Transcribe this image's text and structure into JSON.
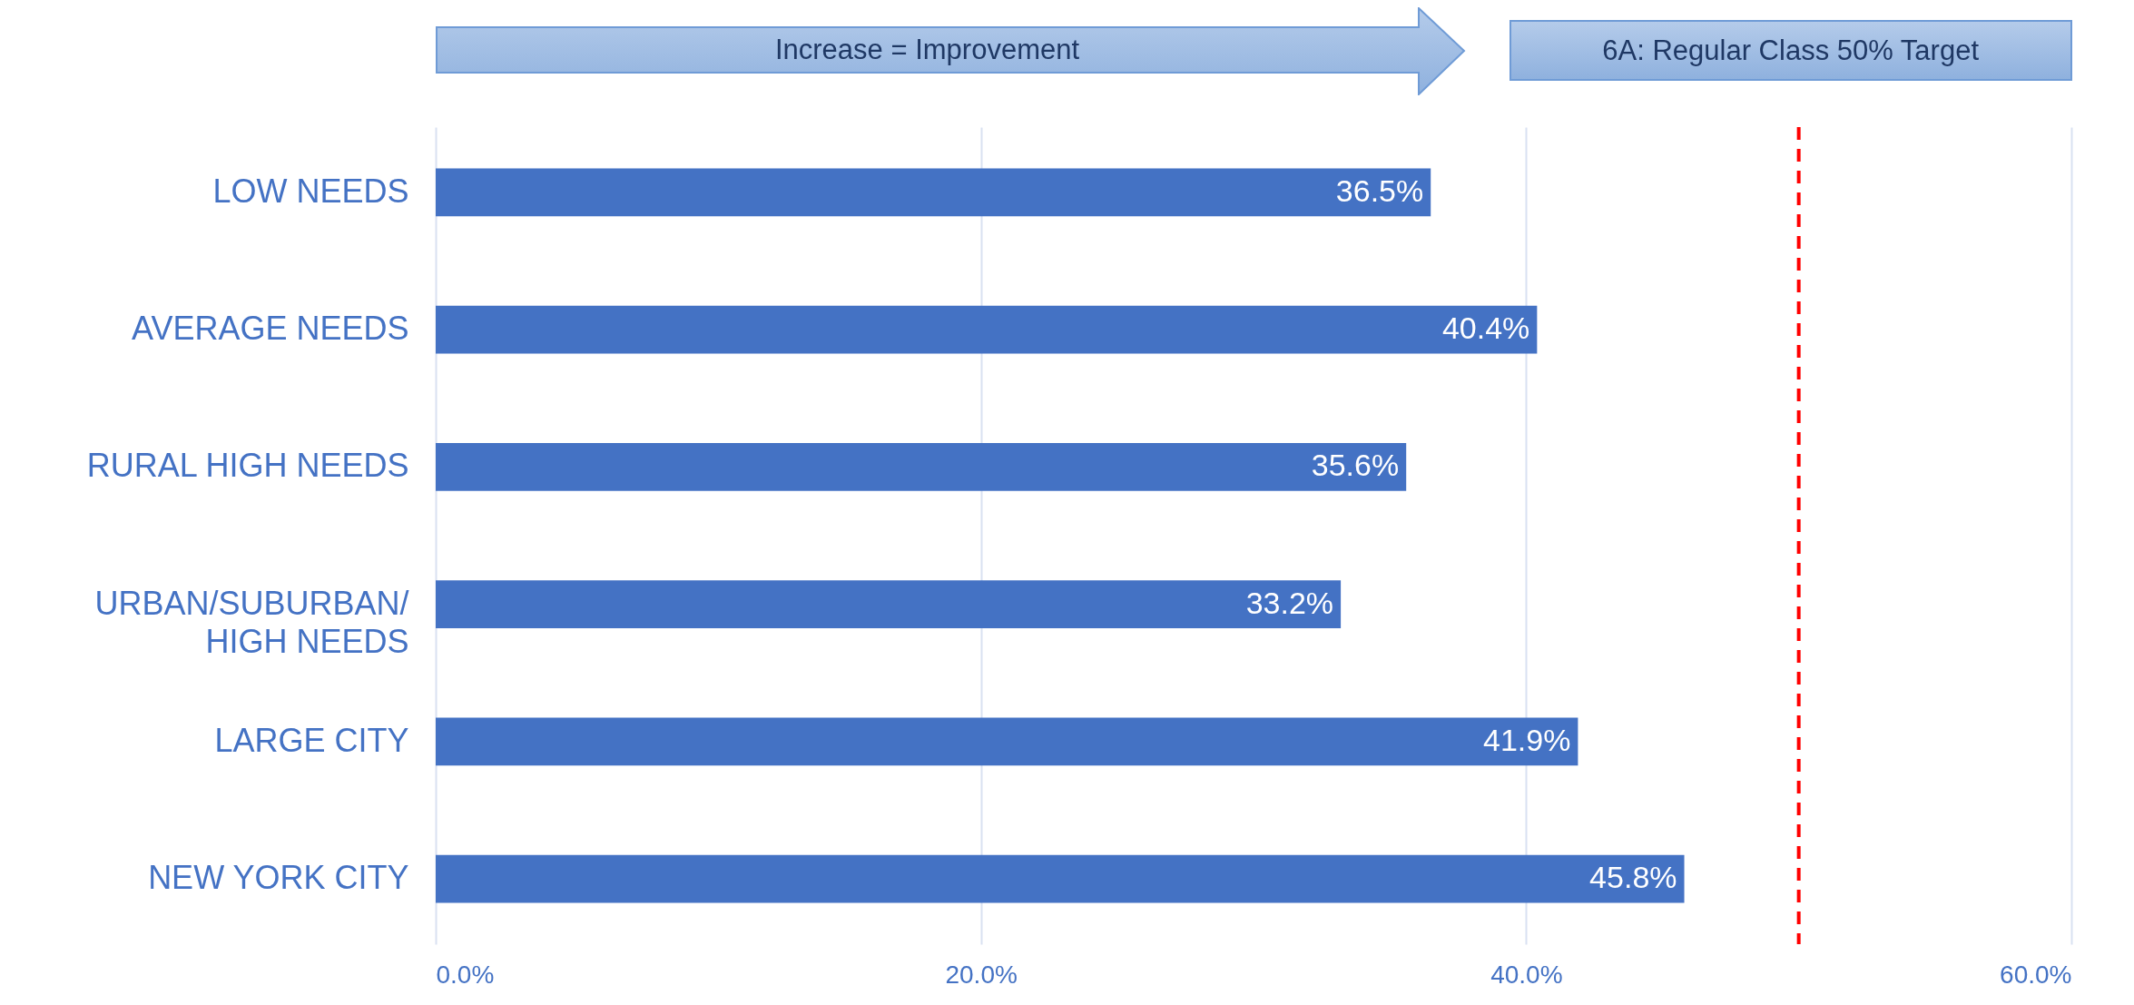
{
  "chart_data": {
    "type": "bar",
    "orientation": "horizontal",
    "categories": [
      "LOW NEEDS",
      "AVERAGE NEEDS",
      "RURAL HIGH NEEDS",
      "URBAN/SUBURBAN/\nHIGH NEEDS",
      "LARGE CITY",
      "NEW YORK CITY"
    ],
    "values": [
      36.5,
      40.4,
      35.6,
      33.2,
      41.9,
      45.8
    ],
    "value_labels": [
      "36.5%",
      "40.4%",
      "35.6%",
      "33.2%",
      "41.9%",
      "45.8%"
    ],
    "color": "#4472c4",
    "xlim": [
      0,
      60
    ],
    "xticks": [
      {
        "value": 0,
        "label": "0.0%"
      },
      {
        "value": 20,
        "label": "20.0%"
      },
      {
        "value": 40,
        "label": "40.0%"
      },
      {
        "value": 60,
        "label": "60.0%"
      }
    ],
    "grid": "x",
    "ref_lines": [
      {
        "axis": "x",
        "value": 50,
        "label": "6A: Regular Class 50% Target",
        "color": "#ff0000",
        "line_style": "dashed"
      }
    ],
    "annotations": [
      "Increase = Improvement"
    ]
  }
}
